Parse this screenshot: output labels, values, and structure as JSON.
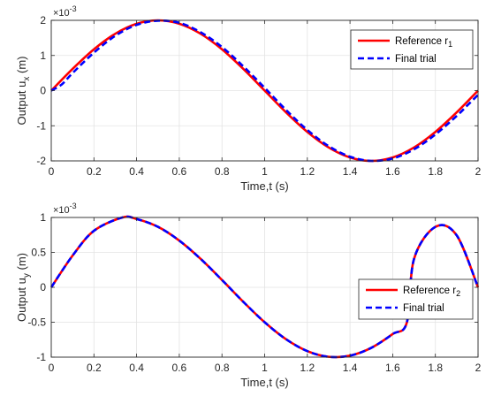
{
  "chart_data": [
    {
      "type": "line",
      "id": "top",
      "title": "",
      "xlabel": "Time,t (s)",
      "ylabel_main": "Output u",
      "ylabel_sub": "x",
      "ylabel_unit": " (m)",
      "exponent_base": "×10",
      "exponent_power": "-3",
      "xlim": [
        0,
        2
      ],
      "ylim": [
        -2,
        2
      ],
      "xticks": [
        0,
        0.2,
        0.4,
        0.6,
        0.8,
        1,
        1.2,
        1.4,
        1.6,
        1.8,
        2
      ],
      "xtick_labels": [
        "0",
        "0.2",
        "0.4",
        "0.6",
        "0.8",
        "1",
        "1.2",
        "1.4",
        "1.6",
        "1.8",
        "2"
      ],
      "yticks": [
        -2,
        -1,
        0,
        1,
        2
      ],
      "ytick_labels": [
        "-2",
        "-1",
        "0",
        "1",
        "2"
      ],
      "grid": true,
      "legend_position": "top-right",
      "series": [
        {
          "name": "Reference r",
          "name_sub": "1",
          "color": "#ff0000",
          "style": "solid",
          "x": [
            0,
            0.1,
            0.2,
            0.3,
            0.4,
            0.5,
            0.6,
            0.7,
            0.8,
            0.9,
            1.0,
            1.1,
            1.2,
            1.3,
            1.4,
            1.5,
            1.6,
            1.7,
            1.8,
            1.9,
            2.0
          ],
          "y": [
            0,
            0.618,
            1.176,
            1.618,
            1.902,
            2.0,
            1.902,
            1.618,
            1.176,
            0.618,
            0,
            -0.618,
            -1.176,
            -1.618,
            -1.902,
            -2.0,
            -1.902,
            -1.618,
            -1.176,
            -0.618,
            0
          ]
        },
        {
          "name": "Final trial",
          "name_sub": "",
          "color": "#0000ff",
          "style": "dashed",
          "x": [
            0,
            0.05,
            0.1,
            0.2,
            0.3,
            0.4,
            0.5,
            0.6,
            0.7,
            0.8,
            0.9,
            1.0,
            1.1,
            1.2,
            1.3,
            1.4,
            1.5,
            1.6,
            1.7,
            1.8,
            1.9,
            1.95,
            2.0
          ],
          "y": [
            0,
            0.18,
            0.5,
            1.08,
            1.56,
            1.87,
            1.99,
            1.93,
            1.66,
            1.24,
            0.69,
            0.08,
            -0.55,
            -1.12,
            -1.58,
            -1.88,
            -2.0,
            -1.93,
            -1.67,
            -1.25,
            -0.72,
            -0.42,
            -0.12
          ]
        }
      ]
    },
    {
      "type": "line",
      "id": "bottom",
      "title": "",
      "xlabel": "Time,t (s)",
      "ylabel_main": "Output u",
      "ylabel_sub": "y",
      "ylabel_unit": " (m)",
      "exponent_base": "×10",
      "exponent_power": "-3",
      "xlim": [
        0,
        2
      ],
      "ylim": [
        -1,
        1
      ],
      "xticks": [
        0,
        0.2,
        0.4,
        0.6,
        0.8,
        1,
        1.2,
        1.4,
        1.6,
        1.8,
        2
      ],
      "xtick_labels": [
        "0",
        "0.2",
        "0.4",
        "0.6",
        "0.8",
        "1",
        "1.2",
        "1.4",
        "1.6",
        "1.8",
        "2"
      ],
      "yticks": [
        -1,
        -0.5,
        0,
        0.5,
        1
      ],
      "ytick_labels": [
        "-1",
        "-0.5",
        "0",
        "0.5",
        "1"
      ],
      "grid": true,
      "legend_position": "bottom-right",
      "series": [
        {
          "name": "Reference r",
          "name_sub": "2",
          "color": "#ff0000",
          "style": "solid",
          "x": [
            0,
            0.1,
            0.2,
            0.3333,
            0.4,
            0.5,
            0.6,
            0.7,
            0.8,
            0.9,
            1.0,
            1.1,
            1.2,
            1.3,
            1.4,
            1.5,
            1.6,
            1.6667,
            1.7,
            1.8,
            1.9,
            2.0
          ],
          "y": [
            0,
            0.454,
            0.809,
            1.0,
            0.978,
            0.866,
            0.669,
            0.407,
            0.105,
            -0.208,
            -0.5,
            -0.743,
            -0.914,
            -0.995,
            -0.978,
            -0.866,
            -0.669,
            -0.5,
            0.407,
            0.866,
            0.743,
            0
          ]
        },
        {
          "name": "Final  trial",
          "name_sub": "",
          "color": "#0000ff",
          "style": "dashed",
          "x": [
            0,
            0.1,
            0.2,
            0.3333,
            0.4,
            0.5,
            0.6,
            0.7,
            0.8,
            0.9,
            1.0,
            1.1,
            1.2,
            1.3,
            1.4,
            1.5,
            1.6,
            1.6667,
            1.7,
            1.8,
            1.9,
            2.0
          ],
          "y": [
            0,
            0.454,
            0.809,
            1.0,
            0.978,
            0.866,
            0.669,
            0.407,
            0.105,
            -0.208,
            -0.5,
            -0.743,
            -0.914,
            -0.995,
            -0.978,
            -0.866,
            -0.669,
            -0.5,
            0.407,
            0.866,
            0.743,
            0
          ]
        }
      ]
    }
  ]
}
